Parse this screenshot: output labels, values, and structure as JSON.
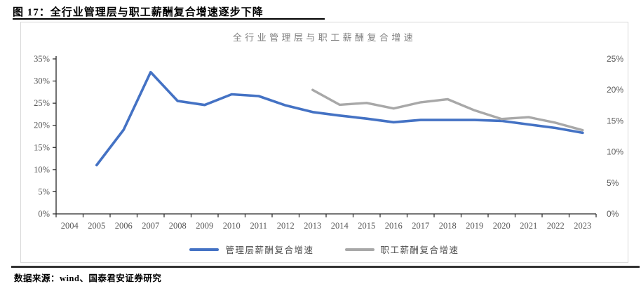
{
  "page": {
    "title": "图 17：全行业管理层与职工薪酬复合增速逐步下降",
    "source": "数据来源：wind、国泰君安证券研究"
  },
  "chart_data": {
    "type": "line",
    "title": "全行业管理层与职工薪酬复合增速",
    "categories": [
      "2004",
      "2005",
      "2006",
      "2007",
      "2008",
      "2009",
      "2010",
      "2011",
      "2012",
      "2013",
      "2014",
      "2015",
      "2016",
      "2017",
      "2018",
      "2019",
      "2020",
      "2021",
      "2022",
      "2023"
    ],
    "series": [
      {
        "name": "管理层薪酬复合增速",
        "axis": "left",
        "color": "#4472C4",
        "line_width": 3.6,
        "values": [
          null,
          11,
          19,
          32,
          25.5,
          24.6,
          27,
          26.6,
          24.5,
          23,
          22.2,
          21.5,
          20.7,
          21.2,
          21.2,
          21.2,
          21,
          20.2,
          19.4,
          18.3
        ]
      },
      {
        "name": "职工薪酬复合增速",
        "axis": "right",
        "color": "#A8A8A8",
        "line_width": 3.4,
        "values": [
          null,
          null,
          null,
          null,
          null,
          null,
          null,
          null,
          null,
          20,
          17.6,
          17.9,
          17,
          18,
          18.5,
          16.7,
          15.3,
          15.6,
          14.7,
          13.5
        ]
      }
    ],
    "left_axis": {
      "min": 0,
      "max": 35,
      "step": 5,
      "unit": "%"
    },
    "right_axis": {
      "min": 0,
      "max": 25,
      "step": 5,
      "unit": "%"
    },
    "legend_position": "bottom",
    "grid": false,
    "axis_color": "#262626",
    "label_color": "#595959"
  }
}
